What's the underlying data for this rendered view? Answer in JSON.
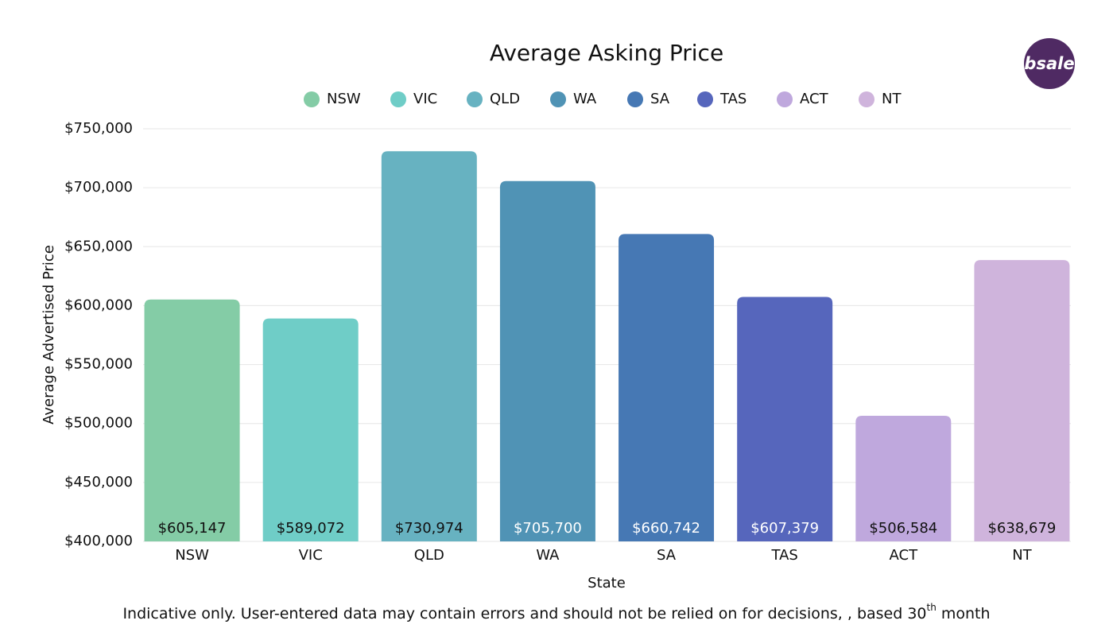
{
  "chart_data": {
    "type": "bar",
    "title": "Average Asking Price",
    "categories": [
      "NSW",
      "VIC",
      "QLD",
      "WA",
      "SA",
      "TAS",
      "ACT",
      "NT"
    ],
    "values": [
      605147,
      589072,
      730974,
      705700,
      660742,
      607379,
      506584,
      638679
    ],
    "value_labels": [
      "$605,147",
      "$589,072",
      "$730,974",
      "$705,700",
      "$660,742",
      "$607,379",
      "$506,584",
      "$638,679"
    ],
    "colors": [
      "#84cca6",
      "#6fcdc7",
      "#67b2c1",
      "#5093b5",
      "#4678b4",
      "#5666bc",
      "#bfa8dd",
      "#cfb4dc"
    ],
    "value_label_colors": [
      "#111111",
      "#111111",
      "#111111",
      "#ffffff",
      "#ffffff",
      "#ffffff",
      "#111111",
      "#111111"
    ],
    "x_label": "State",
    "y_label": "Average Advertised Price",
    "ylim": [
      400000,
      750000
    ],
    "yticks": [
      {
        "value": 400000,
        "label": "$400,000"
      },
      {
        "value": 450000,
        "label": "$450,000"
      },
      {
        "value": 500000,
        "label": "$500,000"
      },
      {
        "value": 550000,
        "label": "$550,000"
      },
      {
        "value": 600000,
        "label": "$600,000"
      },
      {
        "value": 650000,
        "label": "$650,000"
      },
      {
        "value": 700000,
        "label": "$700,000"
      },
      {
        "value": 750000,
        "label": "$750,000"
      }
    ],
    "grid": true,
    "logo": "bsale",
    "footnote": {
      "text": "Indicative only. User-entered data may contain errors and should not be relied on for decisions, , based 30",
      "sup": "th",
      "tail": " month"
    }
  }
}
